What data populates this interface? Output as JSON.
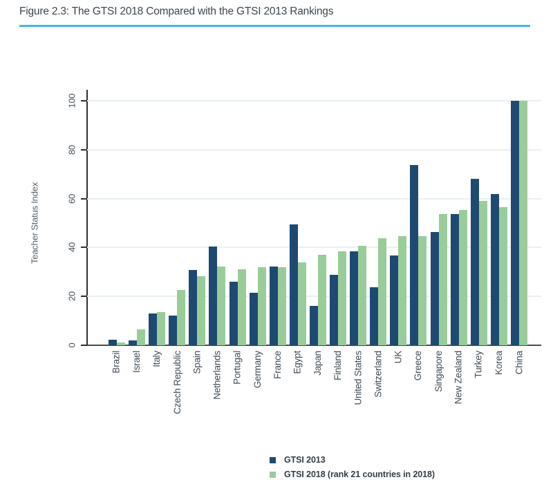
{
  "figure": {
    "title": "Figure 2.3: The GTSI 2018 Compared with the GTSI 2013 Rankings",
    "rule_color": "#41b6e9"
  },
  "chart_data": {
    "type": "bar",
    "title": "",
    "xlabel": "",
    "ylabel": "Teacher Status Index",
    "ylim": [
      0,
      100
    ],
    "yticks": [
      0,
      20,
      40,
      60,
      80,
      100
    ],
    "grid": "horizontal",
    "gridline_color": "#e8f0f3",
    "legend_position": "bottom-center",
    "categories": [
      "Brazil",
      "Israel",
      "Italy",
      "Czech Republic",
      "Spain",
      "Netherlands",
      "Portugal",
      "Germany",
      "France",
      "Egypt",
      "Japan",
      "Finland",
      "United States",
      "Switzerland",
      "UK",
      "Greece",
      "Singapore",
      "New Zealand",
      "Turkey",
      "Korea",
      "China"
    ],
    "series": [
      {
        "name": "GTSI 2013",
        "color": "#1e4a72",
        "values": [
          2.4,
          2.0,
          13.0,
          12.1,
          30.7,
          40.3,
          26.0,
          21.6,
          32.3,
          49.3,
          16.2,
          28.9,
          38.4,
          23.8,
          36.7,
          73.7,
          46.3,
          53.8,
          68.0,
          62.0,
          100
        ]
      },
      {
        "name": "GTSI 2018 (rank 21 countries in 2018)",
        "color": "#99cc99",
        "values": [
          1.0,
          6.6,
          13.6,
          22.5,
          28.2,
          32.2,
          31.0,
          31.9,
          32.0,
          33.9,
          37.1,
          38.4,
          40.8,
          43.8,
          44.7,
          44.6,
          53.8,
          55.4,
          59.1,
          56.6,
          100
        ]
      }
    ]
  }
}
